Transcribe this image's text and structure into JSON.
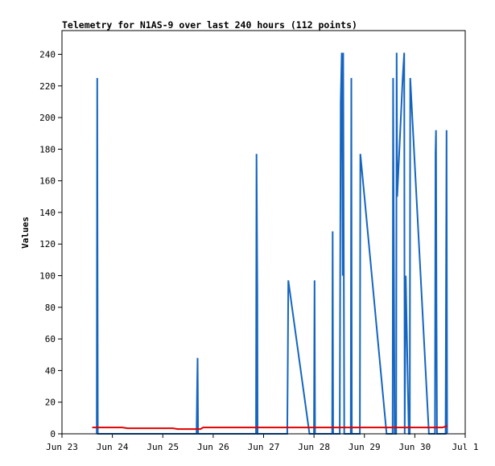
{
  "chart_data": {
    "type": "line",
    "title": "Telemetry for N1AS-9 over last 240 hours (112 points)",
    "xlabel": "",
    "ylabel": "Values",
    "ylim": [
      0,
      255
    ],
    "yticks": [
      0,
      20,
      40,
      60,
      80,
      100,
      120,
      140,
      160,
      180,
      200,
      220,
      240
    ],
    "xlim": [
      "Jun 23",
      "Jul 1"
    ],
    "xticks": [
      "Jun 23",
      "Jun 24",
      "Jun 25",
      "Jun 26",
      "Jun 27",
      "Jun 28",
      "Jun 29",
      "Jun 30",
      "Jul 1"
    ],
    "grid": false,
    "legend": "none",
    "series": [
      {
        "color": "#1565c0",
        "points": [
          [
            0.69,
            0
          ],
          [
            0.7,
            225
          ],
          [
            0.71,
            0
          ],
          [
            2.67,
            0
          ],
          [
            2.68,
            25
          ],
          [
            2.69,
            48
          ],
          [
            2.7,
            0
          ],
          [
            3.85,
            0
          ],
          [
            3.86,
            177
          ],
          [
            3.875,
            90
          ],
          [
            3.88,
            0
          ],
          [
            4.47,
            0
          ],
          [
            4.48,
            48
          ],
          [
            4.49,
            97
          ],
          [
            4.91,
            0
          ],
          [
            5.0,
            0
          ],
          [
            5.01,
            97
          ],
          [
            5.02,
            0
          ],
          [
            5.36,
            0
          ],
          [
            5.37,
            128
          ],
          [
            5.38,
            0
          ],
          [
            5.51,
            0
          ],
          [
            5.53,
            210
          ],
          [
            5.55,
            241
          ],
          [
            5.57,
            100
          ],
          [
            5.58,
            241
          ],
          [
            5.6,
            0
          ],
          [
            5.73,
            0
          ],
          [
            5.74,
            225
          ],
          [
            5.75,
            0
          ],
          [
            5.91,
            0
          ],
          [
            5.92,
            177
          ],
          [
            6.0,
            150
          ],
          [
            6.44,
            0
          ],
          [
            6.56,
            0
          ],
          [
            6.57,
            225
          ],
          [
            6.6,
            0
          ],
          [
            6.63,
            0
          ],
          [
            6.64,
            241
          ],
          [
            6.65,
            150
          ],
          [
            6.76,
            225
          ],
          [
            6.79,
            241
          ],
          [
            6.8,
            0
          ],
          [
            6.82,
            100
          ],
          [
            6.88,
            0
          ],
          [
            6.9,
            0
          ],
          [
            6.91,
            225
          ],
          [
            7.28,
            0
          ],
          [
            7.4,
            0
          ],
          [
            7.41,
            177
          ],
          [
            7.42,
            192
          ],
          [
            7.43,
            80
          ],
          [
            7.44,
            0
          ],
          [
            7.61,
            0
          ],
          [
            7.62,
            97
          ],
          [
            7.63,
            192
          ],
          [
            7.64,
            0
          ]
        ]
      },
      {
        "color": "#e00000",
        "points": [
          [
            0.6,
            4
          ],
          [
            1.2,
            4
          ],
          [
            1.3,
            3.5
          ],
          [
            2.2,
            3.5
          ],
          [
            2.3,
            3
          ],
          [
            2.75,
            3
          ],
          [
            2.8,
            4
          ],
          [
            7.55,
            4
          ],
          [
            7.65,
            5
          ]
        ]
      },
      {
        "color": "#000000",
        "points": [
          [
            0.6,
            0
          ],
          [
            7.65,
            0
          ]
        ]
      }
    ]
  }
}
